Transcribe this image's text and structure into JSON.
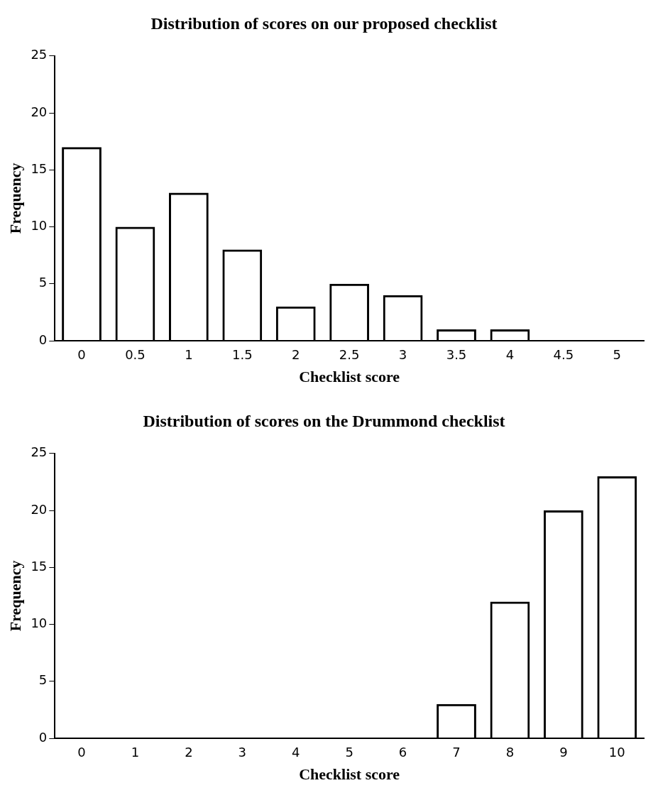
{
  "chart_data": [
    {
      "type": "bar",
      "title": "Distribution of scores on our proposed checklist",
      "xlabel": "Checklist score",
      "ylabel": "Frequency",
      "categories": [
        "0",
        "0.5",
        "1",
        "1.5",
        "2",
        "2.5",
        "3",
        "3.5",
        "4",
        "4.5",
        "5"
      ],
      "values": [
        17,
        10,
        13,
        8,
        3,
        5,
        4,
        1,
        1,
        0,
        0
      ],
      "color": "#000000",
      "ylim": [
        0,
        25
      ],
      "yticks": [
        0,
        5,
        10,
        15,
        20,
        25
      ],
      "grid": false
    },
    {
      "type": "bar",
      "title": "Distribution of scores on the Drummond checklist",
      "xlabel": "Checklist score",
      "ylabel": "Frequency",
      "categories": [
        "0",
        "1",
        "2",
        "3",
        "4",
        "5",
        "6",
        "7",
        "8",
        "9",
        "10"
      ],
      "values": [
        0,
        0,
        0,
        0,
        0,
        0,
        0,
        3,
        12,
        20,
        23
      ],
      "color": "#000000",
      "ylim": [
        0,
        25
      ],
      "yticks": [
        0,
        5,
        10,
        15,
        20,
        25
      ],
      "grid": false
    }
  ]
}
